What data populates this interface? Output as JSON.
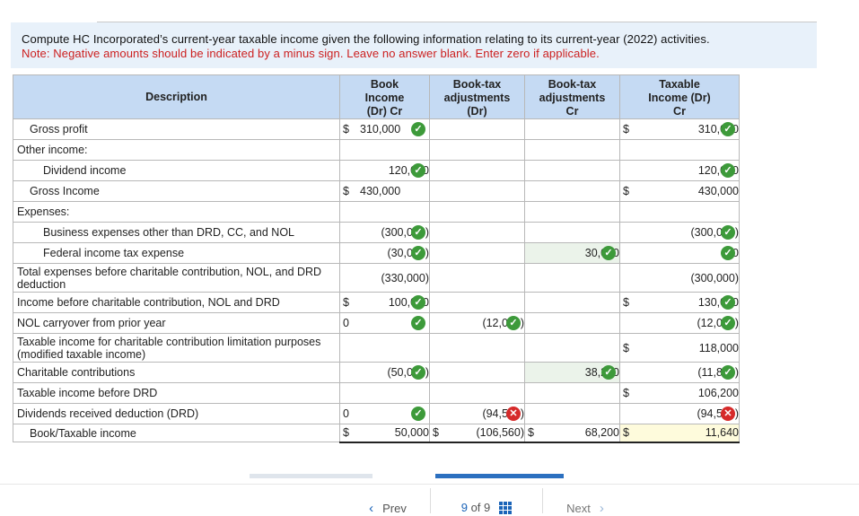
{
  "prompt": {
    "line1": "Compute HC Incorporated’s current-year taxable income given the following information relating to its current-year (2022) activities.",
    "line2": "Note: Negative amounts should be indicated by a minus sign. Leave no answer blank. Enter zero if applicable."
  },
  "headers": {
    "description": "Description",
    "book": [
      "Book",
      "Income",
      "(Dr) Cr"
    ],
    "dr": [
      "Book-tax",
      "adjustments",
      "(Dr)"
    ],
    "cr": [
      "Book-tax",
      "adjustments",
      "Cr"
    ],
    "taxable": [
      "Taxable",
      "Income (Dr)",
      "Cr"
    ]
  },
  "rows": {
    "gross_profit": {
      "label": "Gross profit",
      "book_cur": "$",
      "book": "310,000",
      "tax_cur": "$",
      "tax": "310,000"
    },
    "other_income": {
      "label": "Other income:"
    },
    "dividend_income": {
      "label": "Dividend income",
      "book": "120,000",
      "tax": "120,000"
    },
    "gross_income": {
      "label": "Gross Income",
      "book_cur": "$",
      "book": "430,000",
      "tax_cur": "$",
      "tax": "430,000"
    },
    "expenses": {
      "label": "Expenses:"
    },
    "business_exp": {
      "label": "Business expenses other than DRD, CC, and NOL",
      "book": "(300,000)",
      "tax": "(300,000)"
    },
    "fed_tax": {
      "label": "Federal income tax expense",
      "book": "(30,000)",
      "cr": "30,000",
      "tax": "0"
    },
    "total_exp": {
      "label": "Total expenses before charitable contribution, NOL, and DRD deduction",
      "book": "(330,000)",
      "tax": "(300,000)"
    },
    "income_before": {
      "label": "Income before charitable contribution, NOL and DRD",
      "book_cur": "$",
      "book": "100,000",
      "tax_cur": "$",
      "tax": "130,000"
    },
    "nol": {
      "label": "NOL carryover from prior year",
      "book": "0",
      "dr": "(12,000)",
      "tax": "(12,000)"
    },
    "modified": {
      "label": "Taxable income for charitable contribution limitation purposes (modified taxable income)",
      "tax_cur": "$",
      "tax": "118,000"
    },
    "charitable": {
      "label": "Charitable contributions",
      "book": "(50,000)",
      "cr": "38,200",
      "tax": "(11,800)"
    },
    "before_drd": {
      "label": "Taxable income before DRD",
      "tax_cur": "$",
      "tax": "106,200"
    },
    "drd": {
      "label": "Dividends received deduction (DRD)",
      "book": "0",
      "dr": "(94,560)",
      "tax": "(94,560)"
    },
    "final": {
      "label": "Book/Taxable income",
      "book_cur": "$",
      "book": "50,000",
      "dr_cur": "$",
      "dr": "(106,560)",
      "cr_cur": "$",
      "cr": "68,200",
      "tax_cur": "$",
      "tax": "11,640"
    }
  },
  "pager": {
    "prev": "Prev",
    "page": "9",
    "of": "of",
    "total": "9",
    "next": "Next"
  },
  "colors": {
    "header_bg": "#c5daf3",
    "prompt_bg": "#e8f1fa",
    "note_red": "#cc1f1f",
    "correct": "#3d9a3a",
    "wrong": "#d62a2a",
    "accent": "#2c70c0"
  }
}
